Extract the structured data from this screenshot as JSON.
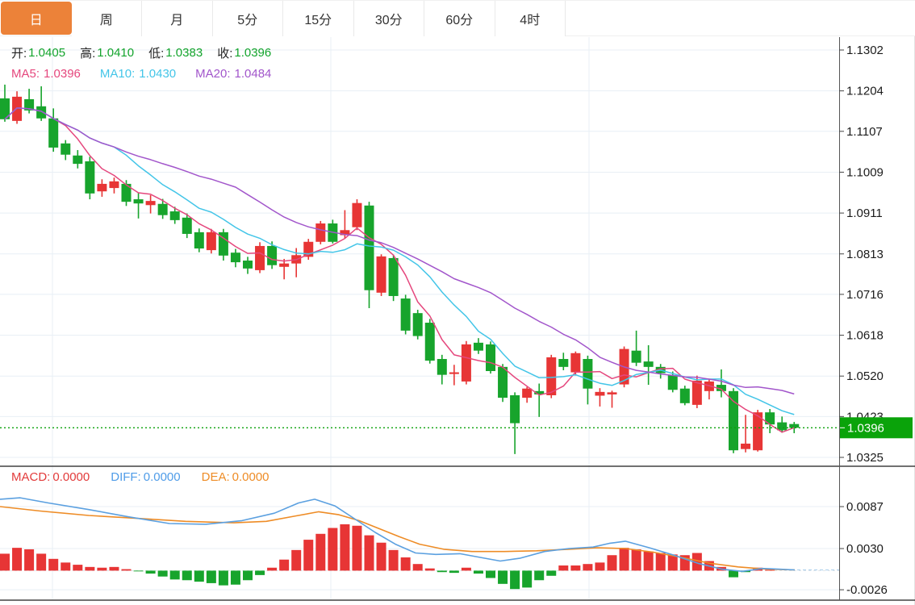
{
  "tabs": [
    {
      "label": "日",
      "active": true
    },
    {
      "label": "周",
      "active": false
    },
    {
      "label": "月",
      "active": false
    },
    {
      "label": "5分",
      "active": false
    },
    {
      "label": "15分",
      "active": false
    },
    {
      "label": "30分",
      "active": false
    },
    {
      "label": "60分",
      "active": false
    },
    {
      "label": "4时",
      "active": false
    }
  ],
  "ohlc_legend": {
    "open_label": "开:",
    "open_value": "1.0405",
    "high_label": "高:",
    "high_value": "1.0410",
    "low_label": "低:",
    "low_value": "1.0383",
    "close_label": "收:",
    "close_value": "1.0396"
  },
  "ma_legend": {
    "ma5_label": "MA5:",
    "ma5_value": "1.0396",
    "ma10_label": "MA10:",
    "ma10_value": "1.0430",
    "ma20_label": "MA20:",
    "ma20_value": "1.0484"
  },
  "macd_legend": {
    "macd_label": "MACD:",
    "macd_value": "0.0000",
    "diff_label": "DIFF:",
    "diff_value": "0.0000",
    "dea_label": "DEA:",
    "dea_value": "0.0000"
  },
  "price_axis_badge": "1.0396",
  "colors": {
    "up": "#e73535",
    "down": "#17a42c",
    "ma5": "#e5477d",
    "ma10": "#43c5e8",
    "ma20": "#a256cb",
    "diff": "#5ba0e0",
    "dea": "#ee8c26",
    "badge": "#0aa30a",
    "price_line": "#0ba10b",
    "grid": "#e8eff5",
    "active_tab": "#ec8239"
  },
  "chart_data": {
    "type": "candlestick",
    "panels": [
      "price",
      "macd"
    ],
    "x_gridlines": [
      65,
      410,
      730
    ],
    "price_panel": {
      "ylim": [
        1.0325,
        1.1302
      ],
      "price_ticks": [
        1.1302,
        1.1204,
        1.1107,
        1.1009,
        1.0911,
        1.0813,
        1.0716,
        1.0618,
        1.052,
        1.0423,
        1.0325
      ],
      "current_price": 1.0396,
      "last_ohlc": {
        "open": 1.0405,
        "high": 1.041,
        "low": 1.0383,
        "close": 1.0396
      },
      "ma_periods": [
        5,
        10,
        20
      ],
      "ma_last_values": {
        "ma5": 1.0396,
        "ma10": 1.043,
        "ma20": 1.0484
      },
      "candles_ohlc": [
        [
          1.1186,
          1.1219,
          1.113,
          1.1136
        ],
        [
          1.1132,
          1.1203,
          1.1125,
          1.119
        ],
        [
          1.1184,
          1.1209,
          1.115,
          1.1157
        ],
        [
          1.1167,
          1.1215,
          1.1132,
          1.1138
        ],
        [
          1.1138,
          1.1162,
          1.1058,
          1.1068
        ],
        [
          1.1078,
          1.1086,
          1.1038,
          1.1051
        ],
        [
          1.1049,
          1.1062,
          1.1018,
          1.1029
        ],
        [
          1.1035,
          1.1046,
          1.0944,
          1.0958
        ],
        [
          1.0963,
          1.0992,
          1.095,
          1.0981
        ],
        [
          1.0971,
          1.0996,
          1.0958,
          1.0987
        ],
        [
          1.0981,
          1.099,
          1.0928,
          1.0938
        ],
        [
          1.0944,
          1.096,
          1.0898,
          1.0934
        ],
        [
          1.093,
          1.0954,
          1.091,
          1.094
        ],
        [
          1.0933,
          1.0945,
          1.0897,
          1.0906
        ],
        [
          1.0915,
          1.0926,
          1.0885,
          1.0894
        ],
        [
          1.09,
          1.091,
          1.0851,
          1.0861
        ],
        [
          1.0865,
          1.0874,
          1.0817,
          1.0826
        ],
        [
          1.0822,
          1.0873,
          1.0814,
          1.0865
        ],
        [
          1.0865,
          1.0873,
          1.0797,
          1.0809
        ],
        [
          1.0816,
          1.0825,
          1.0781,
          1.0793
        ],
        [
          1.0797,
          1.0806,
          1.0765,
          1.0778
        ],
        [
          1.0774,
          1.0841,
          1.0767,
          1.0832
        ],
        [
          1.0832,
          1.0843,
          1.0777,
          1.0786
        ],
        [
          1.0782,
          1.0801,
          1.0752,
          1.079
        ],
        [
          1.079,
          1.0827,
          1.0757,
          1.081
        ],
        [
          1.0806,
          1.0849,
          1.0799,
          1.0842
        ],
        [
          1.0842,
          1.0892,
          1.0836,
          1.0886
        ],
        [
          1.0886,
          1.0895,
          1.0838,
          1.0842
        ],
        [
          1.0858,
          1.0918,
          1.085,
          1.087
        ],
        [
          1.0877,
          1.0944,
          1.087,
          1.0935
        ],
        [
          1.0929,
          1.0938,
          1.0683,
          1.0726
        ],
        [
          1.072,
          1.0812,
          1.0712,
          1.0807
        ],
        [
          1.0803,
          1.0811,
          1.07,
          1.0712
        ],
        [
          1.0706,
          1.0715,
          1.062,
          1.0629
        ],
        [
          1.0671,
          1.0679,
          1.0608,
          1.0616
        ],
        [
          1.0648,
          1.0657,
          1.055,
          1.0557
        ],
        [
          1.0561,
          1.0571,
          1.05,
          1.0523
        ],
        [
          1.0525,
          1.0547,
          1.0498,
          1.0529
        ],
        [
          1.0507,
          1.0604,
          1.05,
          1.0596
        ],
        [
          1.06,
          1.0611,
          1.0573,
          1.0581
        ],
        [
          1.0596,
          1.0603,
          1.0526,
          1.0532
        ],
        [
          1.0542,
          1.0549,
          1.0458,
          1.0468
        ],
        [
          1.0474,
          1.0481,
          1.0333,
          1.0407
        ],
        [
          1.0468,
          1.0494,
          1.0456,
          1.049
        ],
        [
          1.0484,
          1.0502,
          1.0422,
          1.0476
        ],
        [
          1.0474,
          1.0571,
          1.0467,
          1.0565
        ],
        [
          1.0561,
          1.0576,
          1.0534,
          1.0542
        ],
        [
          1.0529,
          1.0579,
          1.0521,
          1.0575
        ],
        [
          1.0561,
          1.0569,
          1.0452,
          1.049
        ],
        [
          1.0473,
          1.0491,
          1.0447,
          1.0482
        ],
        [
          1.0476,
          1.0485,
          1.0444,
          1.0481
        ],
        [
          1.05,
          1.0591,
          1.0493,
          1.0585
        ],
        [
          1.0581,
          1.0629,
          1.0544,
          1.0552
        ],
        [
          1.0555,
          1.0594,
          1.0499,
          1.0542
        ],
        [
          1.0542,
          1.0549,
          1.0514,
          1.0527
        ],
        [
          1.0522,
          1.0531,
          1.0481,
          1.0487
        ],
        [
          1.049,
          1.0497,
          1.045,
          1.0455
        ],
        [
          1.0451,
          1.0521,
          1.0443,
          1.0509
        ],
        [
          1.0484,
          1.0513,
          1.0464,
          1.0507
        ],
        [
          1.0499,
          1.0536,
          1.0469,
          1.0484
        ],
        [
          1.0484,
          1.0491,
          1.0335,
          1.0342
        ],
        [
          1.0345,
          1.0427,
          1.0337,
          1.0358
        ],
        [
          1.0342,
          1.0439,
          1.0339,
          1.0433
        ],
        [
          1.0433,
          1.0441,
          1.0383,
          1.0404
        ],
        [
          1.0409,
          1.0423,
          1.0384,
          1.039
        ],
        [
          1.0405,
          1.041,
          1.0383,
          1.0396
        ]
      ]
    },
    "macd_panel": {
      "ticks": [
        0.0087,
        0.003,
        -0.0026
      ],
      "macd": 0.0,
      "diff": 0.0,
      "dea": 0.0,
      "histogram": [
        0.0023,
        0.0031,
        0.0029,
        0.0023,
        0.0016,
        0.0011,
        0.0008,
        0.0005,
        0.0004,
        0.0005,
        0.0002,
        -0.0001,
        -0.0004,
        -0.0008,
        -0.0012,
        -0.0013,
        -0.0015,
        -0.0017,
        -0.002,
        -0.0019,
        -0.0013,
        -0.0006,
        0.0004,
        0.0015,
        0.0028,
        0.0042,
        0.005,
        0.0058,
        0.0063,
        0.0061,
        0.0048,
        0.0038,
        0.0028,
        0.0018,
        0.0009,
        0.0003,
        -0.0002,
        -0.0003,
        0.0004,
        -0.0004,
        -0.001,
        -0.0018,
        -0.0025,
        -0.0023,
        -0.0013,
        -0.0007,
        0.0007,
        0.0007,
        0.0009,
        0.0011,
        0.0021,
        0.0031,
        0.0029,
        0.0026,
        0.0024,
        0.0022,
        0.0021,
        0.0024,
        0.0013,
        0.0005,
        -0.0009,
        -0.0002,
        0.0004,
        0.0001,
        0.0,
        0.0
      ],
      "diff_line": [
        [
          0,
          0.0097
        ],
        [
          25,
          0.0099
        ],
        [
          60,
          0.0092
        ],
        [
          110,
          0.0083
        ],
        [
          160,
          0.0073
        ],
        [
          210,
          0.0064
        ],
        [
          255,
          0.0063
        ],
        [
          300,
          0.0068
        ],
        [
          340,
          0.0078
        ],
        [
          370,
          0.0092
        ],
        [
          390,
          0.0097
        ],
        [
          415,
          0.0088
        ],
        [
          440,
          0.007
        ],
        [
          465,
          0.0052
        ],
        [
          490,
          0.0036
        ],
        [
          515,
          0.0024
        ],
        [
          540,
          0.0022
        ],
        [
          570,
          0.0023
        ],
        [
          600,
          0.0017
        ],
        [
          620,
          0.0013
        ],
        [
          645,
          0.0017
        ],
        [
          675,
          0.0026
        ],
        [
          705,
          0.003
        ],
        [
          735,
          0.0032
        ],
        [
          755,
          0.0037
        ],
        [
          775,
          0.004
        ],
        [
          805,
          0.0031
        ],
        [
          835,
          0.0021
        ],
        [
          865,
          0.001
        ],
        [
          895,
          0.0002
        ],
        [
          920,
          -0.0001
        ],
        [
          945,
          0.0003
        ],
        [
          965,
          0.0002
        ],
        [
          985,
          0.0001
        ]
      ],
      "dea_line": [
        [
          0,
          0.0087
        ],
        [
          50,
          0.0081
        ],
        [
          110,
          0.0075
        ],
        [
          170,
          0.0071
        ],
        [
          230,
          0.0067
        ],
        [
          290,
          0.0065
        ],
        [
          330,
          0.0067
        ],
        [
          365,
          0.0074
        ],
        [
          395,
          0.008
        ],
        [
          420,
          0.0076
        ],
        [
          445,
          0.0068
        ],
        [
          470,
          0.0057
        ],
        [
          495,
          0.0046
        ],
        [
          520,
          0.0036
        ],
        [
          550,
          0.0029
        ],
        [
          585,
          0.0026
        ],
        [
          625,
          0.0026
        ],
        [
          665,
          0.0027
        ],
        [
          705,
          0.0029
        ],
        [
          740,
          0.0031
        ],
        [
          775,
          0.003
        ],
        [
          810,
          0.0025
        ],
        [
          845,
          0.0018
        ],
        [
          880,
          0.001
        ],
        [
          915,
          0.0005
        ],
        [
          950,
          0.0002
        ],
        [
          985,
          0.0001
        ]
      ]
    }
  }
}
